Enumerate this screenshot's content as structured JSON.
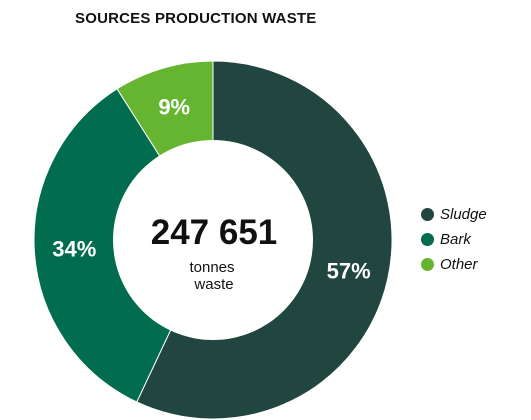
{
  "chart_data": {
    "type": "pie",
    "variant": "donut",
    "title": "SOURCES PRODUCTION WASTE",
    "center_value": "247 651",
    "center_unit_lines": [
      "tonnes",
      "waste"
    ],
    "series": [
      {
        "name": "Sludge",
        "value": 57,
        "label": "57%",
        "color": "#21453f"
      },
      {
        "name": "Bark",
        "value": 34,
        "label": "34%",
        "color": "#016d4e"
      },
      {
        "name": "Other",
        "value": 9,
        "label": "9%",
        "color": "#66b530"
      }
    ],
    "start_angle": "12 o'clock",
    "direction": "clockwise",
    "legend_position": "right"
  }
}
